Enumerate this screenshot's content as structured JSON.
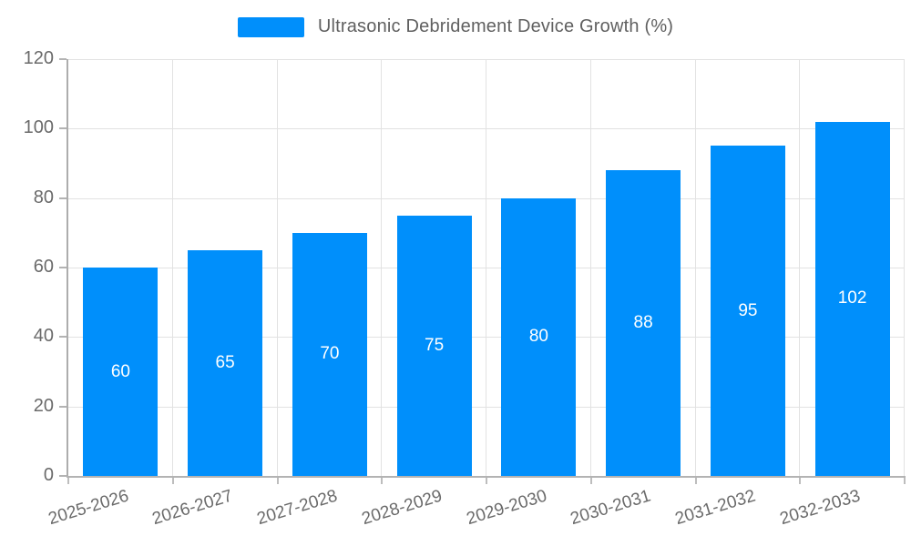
{
  "legend": {
    "label": "Ultrasonic Debridement Device Growth (%)"
  },
  "colors": {
    "bar": "#008FFB",
    "grid": "#e2e2e2",
    "axis": "#b3b3b3",
    "axis_text": "#6a6a6a",
    "value_label": "#ffffff",
    "legend_text": "#606060"
  },
  "chart_data": {
    "type": "bar",
    "title": "Ultrasonic Debridement Device Growth (%)",
    "categories": [
      "2025-2026",
      "2026-2027",
      "2027-2028",
      "2028-2029",
      "2029-2030",
      "2030-2031",
      "2031-2032",
      "2032-2033"
    ],
    "values": [
      60,
      65,
      70,
      75,
      80,
      88,
      95,
      102
    ],
    "xlabel": "",
    "ylabel": "",
    "ylim": [
      0,
      120
    ],
    "yticks": [
      0,
      20,
      40,
      60,
      80,
      100,
      120
    ],
    "grid": true,
    "legend_position": "top",
    "value_labels": "center"
  }
}
